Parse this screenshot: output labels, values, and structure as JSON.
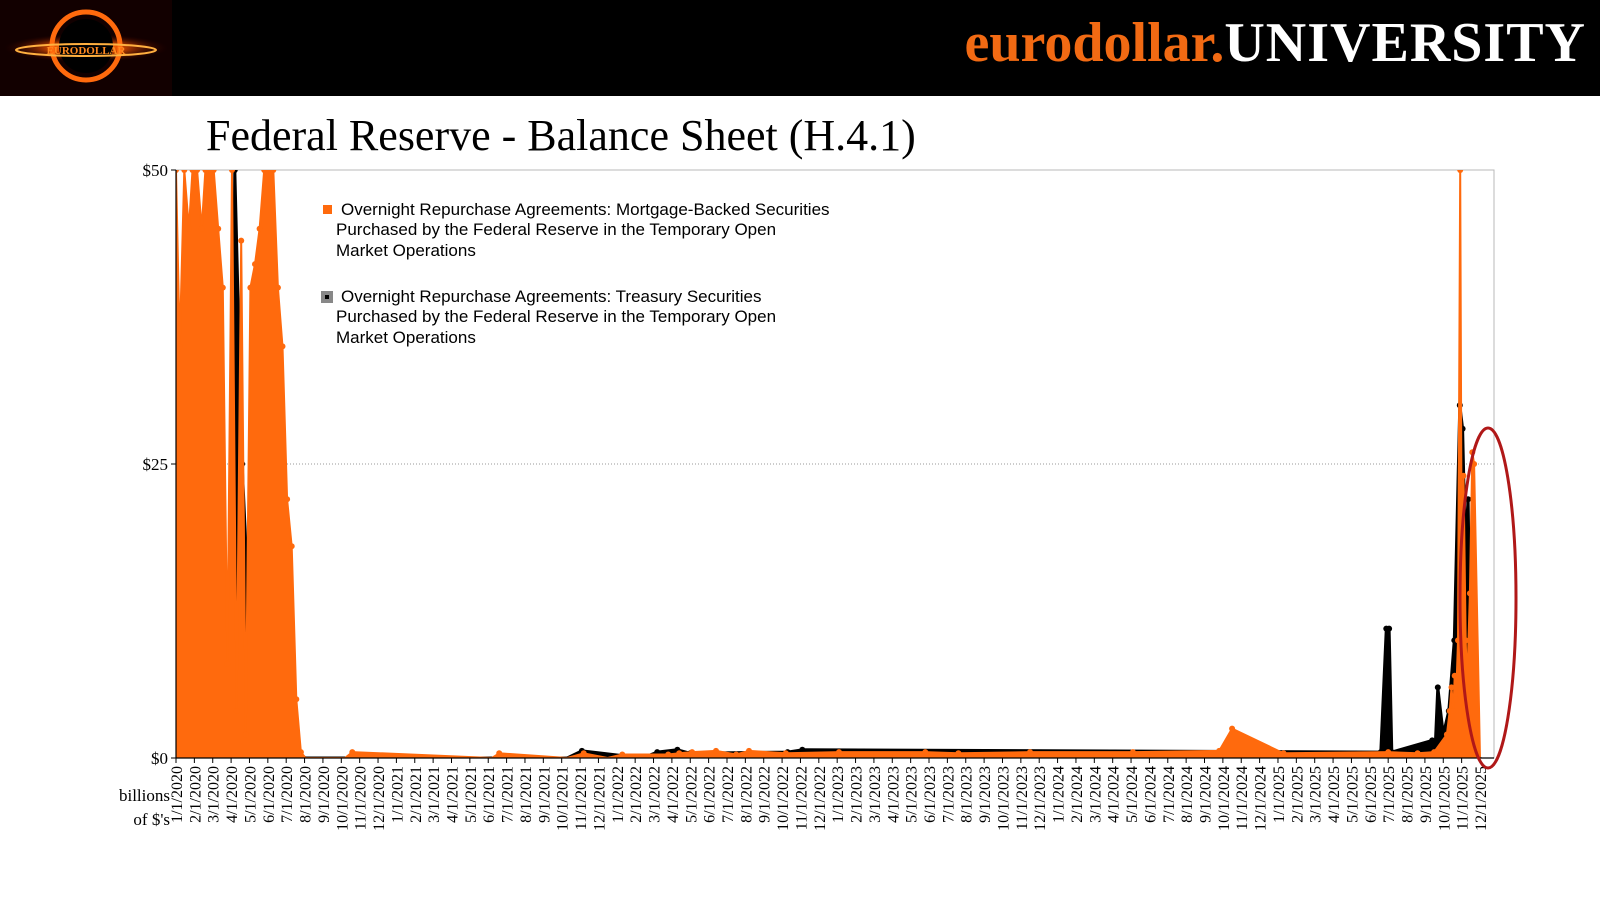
{
  "header": {
    "brand_part1": "eurodollar.",
    "brand_part2": "UNIVERSITY",
    "logo_label": "EURODOLLAR",
    "colors": {
      "background": "#000000",
      "brand_orange": "#f26a13",
      "brand_white": "#ffffff"
    }
  },
  "slide_title": "Federal Reserve - Balance Sheet (H.4.1)",
  "units_label": [
    "billions",
    "of $'s"
  ],
  "chart_data": {
    "type": "area",
    "xlabel": "",
    "ylabel": "billions of $'s",
    "ylim": [
      0,
      50
    ],
    "y_ticks": [
      0,
      25,
      50
    ],
    "y_tick_labels": [
      "$0",
      "$25",
      "$50"
    ],
    "grid": "horizontal dotted line at $25",
    "legend_position": "top-left",
    "x_tick_labels": [
      "1/1/2020",
      "2/1/2020",
      "3/1/2020",
      "4/1/2020",
      "5/1/2020",
      "6/1/2020",
      "7/1/2020",
      "8/1/2020",
      "9/1/2020",
      "10/1/2020",
      "11/1/2020",
      "12/1/2020",
      "1/1/2021",
      "2/1/2021",
      "3/1/2021",
      "4/1/2021",
      "5/1/2021",
      "6/1/2021",
      "7/1/2021",
      "8/1/2021",
      "9/1/2021",
      "10/1/2021",
      "11/1/2021",
      "12/1/2021",
      "1/1/2022",
      "2/1/2022",
      "3/1/2022",
      "4/1/2022",
      "5/1/2022",
      "6/1/2022",
      "7/1/2022",
      "8/1/2022",
      "9/1/2022",
      "10/1/2022",
      "11/1/2022",
      "12/1/2022",
      "1/1/2023",
      "2/1/2023",
      "3/1/2023",
      "4/1/2023",
      "5/1/2023",
      "6/1/2023",
      "7/1/2023",
      "8/1/2023",
      "9/1/2023",
      "10/1/2023",
      "11/1/2023",
      "12/1/2023",
      "1/1/2024",
      "2/1/2024",
      "3/1/2024",
      "4/1/2024",
      "5/1/2024",
      "6/1/2024",
      "7/1/2024",
      "8/1/2024",
      "9/1/2024",
      "10/1/2024",
      "11/1/2024",
      "12/1/2024",
      "1/1/2025",
      "2/1/2025",
      "3/1/2025",
      "4/1/2025",
      "5/1/2025",
      "6/1/2025",
      "7/1/2025",
      "8/1/2025",
      "9/1/2025",
      "10/1/2025",
      "11/1/2025",
      "12/1/2025"
    ],
    "series": [
      {
        "name": "Overnight Repurchase Agreements: Mortgage-Backed Securities Purchased by the Federal Reserve in the Temporary Open Market Operations",
        "color": "#ff6a0d",
        "x": [
          0,
          0.2,
          0.45,
          0.7,
          0.9,
          1.15,
          1.4,
          1.6,
          1.8,
          2.05,
          2.3,
          2.55,
          2.8,
          3.05,
          3.3,
          3.55,
          3.8,
          4.05,
          4.3,
          4.55,
          4.8,
          5.05,
          5.3,
          5.55,
          5.8,
          6.05,
          6.3,
          6.55,
          6.8,
          7.05,
          9.2,
          9.6,
          17.2,
          17.6,
          21.3,
          22.2,
          23.5,
          24.3,
          26.8,
          27.4,
          28.1,
          29.4,
          30.5,
          31.2,
          33.2,
          36.1,
          40.8,
          42.6,
          46.5,
          52.1,
          56.8,
          57.5,
          60.3,
          66.0,
          67.6,
          68.5,
          69.2,
          69.35,
          69.45,
          69.55,
          69.62,
          69.7,
          69.8,
          69.92,
          70.0,
          70.1,
          70.22,
          70.3,
          70.45,
          70.58,
          70.68,
          71.0
        ],
        "values": [
          55,
          35,
          50,
          45,
          55,
          50,
          45,
          58,
          50,
          52,
          45,
          40,
          8,
          52,
          4,
          44,
          2,
          40,
          42,
          45,
          58,
          60,
          55,
          40,
          35,
          22,
          18,
          5,
          0.5,
          0,
          0,
          0.5,
          0,
          0.4,
          0,
          0.4,
          0,
          0.3,
          0.3,
          0.4,
          0.5,
          0.6,
          0.3,
          0.6,
          0.4,
          0.5,
          0.5,
          0.4,
          0.5,
          0.5,
          0.6,
          2.5,
          0.4,
          0.5,
          0.4,
          0.5,
          2,
          4,
          6,
          4,
          7,
          5,
          10,
          55,
          18,
          24,
          10,
          6,
          14,
          26,
          25,
          0
        ]
      },
      {
        "name": "Overnight Repurchase Agreements: Treasury Securities Purchased by the Federal Reserve in the Temporary Open Market Operations",
        "color": "#000000",
        "x": [
          0,
          0.4,
          0.9,
          1.4,
          1.9,
          2.4,
          2.9,
          3.2,
          3.6,
          4.1,
          4.6,
          5.1,
          5.6,
          6.1,
          6.6,
          7.05,
          21.3,
          22.1,
          25.4,
          26.2,
          27.3,
          28.0,
          33.3,
          34.1,
          65.6,
          65.9,
          66.05,
          66.2,
          68.4,
          68.55,
          68.7,
          69.0,
          69.3,
          69.6,
          69.9,
          70.05,
          70.2,
          70.35,
          70.5,
          70.7,
          71.0
        ],
        "values": [
          10,
          18,
          14,
          12,
          10,
          9,
          4,
          58,
          25,
          8,
          4,
          3,
          2,
          1,
          0.5,
          0,
          0,
          0.6,
          0,
          0.5,
          0.7,
          0.4,
          0.5,
          0.7,
          0.5,
          11,
          11,
          0.5,
          1.5,
          0.5,
          6,
          2,
          4,
          10,
          30,
          28,
          18,
          22,
          5,
          0.5,
          0
        ]
      }
    ],
    "annotation": "red ellipse highlighting the late-2025 spike"
  },
  "legend": {
    "mbs_lines": [
      "Overnight Repurchase Agreements: Mortgage-Backed Securities",
      "Purchased by the Federal Reserve in the Temporary Open",
      "Market Operations"
    ],
    "treasury_lines": [
      "Overnight Repurchase Agreements: Treasury Securities",
      "Purchased by the Federal Reserve in the Temporary Open",
      "Market Operations"
    ]
  }
}
